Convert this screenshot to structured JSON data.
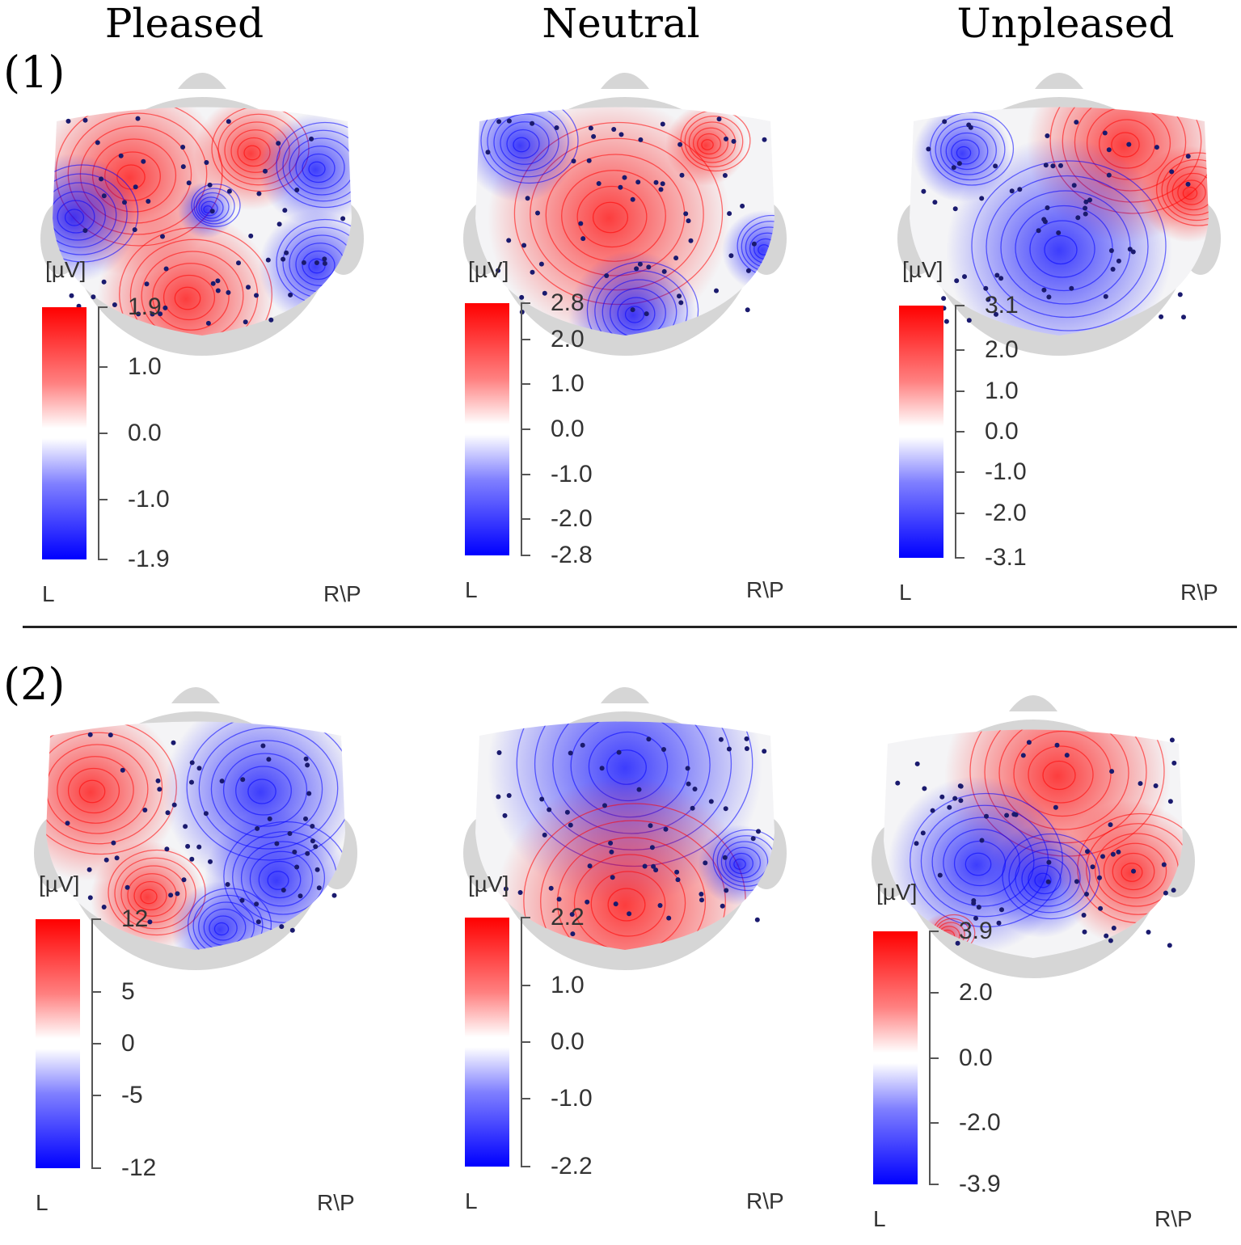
{
  "columns": [
    "Pleased",
    "Neutral",
    "Unpleased"
  ],
  "rows": [
    {
      "label": "(1)",
      "panels": [
        {
          "unit": "[µV]",
          "ticks": [
            "1.9",
            "1.0",
            "0.0",
            "-1.0",
            "-1.9"
          ],
          "range": [
            -1.9,
            1.9
          ],
          "left_label": "L",
          "right_label": "R\\P"
        },
        {
          "unit": "[µV]",
          "ticks": [
            "2.8",
            "2.0",
            "1.0",
            "0.0",
            "-1.0",
            "-2.0",
            "-2.8"
          ],
          "range": [
            -2.8,
            2.8
          ],
          "left_label": "L",
          "right_label": "R\\P"
        },
        {
          "unit": "[µV]",
          "ticks": [
            "3.1",
            "2.0",
            "1.0",
            "0.0",
            "-1.0",
            "-2.0",
            "-3.1"
          ],
          "range": [
            -3.1,
            3.1
          ],
          "left_label": "L",
          "right_label": "R\\P"
        }
      ]
    },
    {
      "label": "(2)",
      "panels": [
        {
          "unit": "[µV]",
          "ticks": [
            "12",
            "5",
            "0",
            "-5",
            "-12"
          ],
          "range": [
            -12,
            12
          ],
          "left_label": "L",
          "right_label": "R\\P"
        },
        {
          "unit": "[µV]",
          "ticks": [
            "2.2",
            "1.0",
            "0.0",
            "-1.0",
            "-2.2"
          ],
          "range": [
            -2.2,
            2.2
          ],
          "left_label": "L",
          "right_label": "R\\P"
        },
        {
          "unit": "[µV]",
          "ticks": [
            "3.9",
            "2.0",
            "0.0",
            "-2.0",
            "-3.9"
          ],
          "range": [
            -3.9,
            3.9
          ],
          "left_label": "L",
          "right_label": "R\\P"
        }
      ]
    }
  ],
  "colors": {
    "positive": "#ff0000",
    "negative": "#0000ff",
    "zero": "#ffffff",
    "head": "#d6d6d6",
    "electrode": "#1a1a6e"
  }
}
